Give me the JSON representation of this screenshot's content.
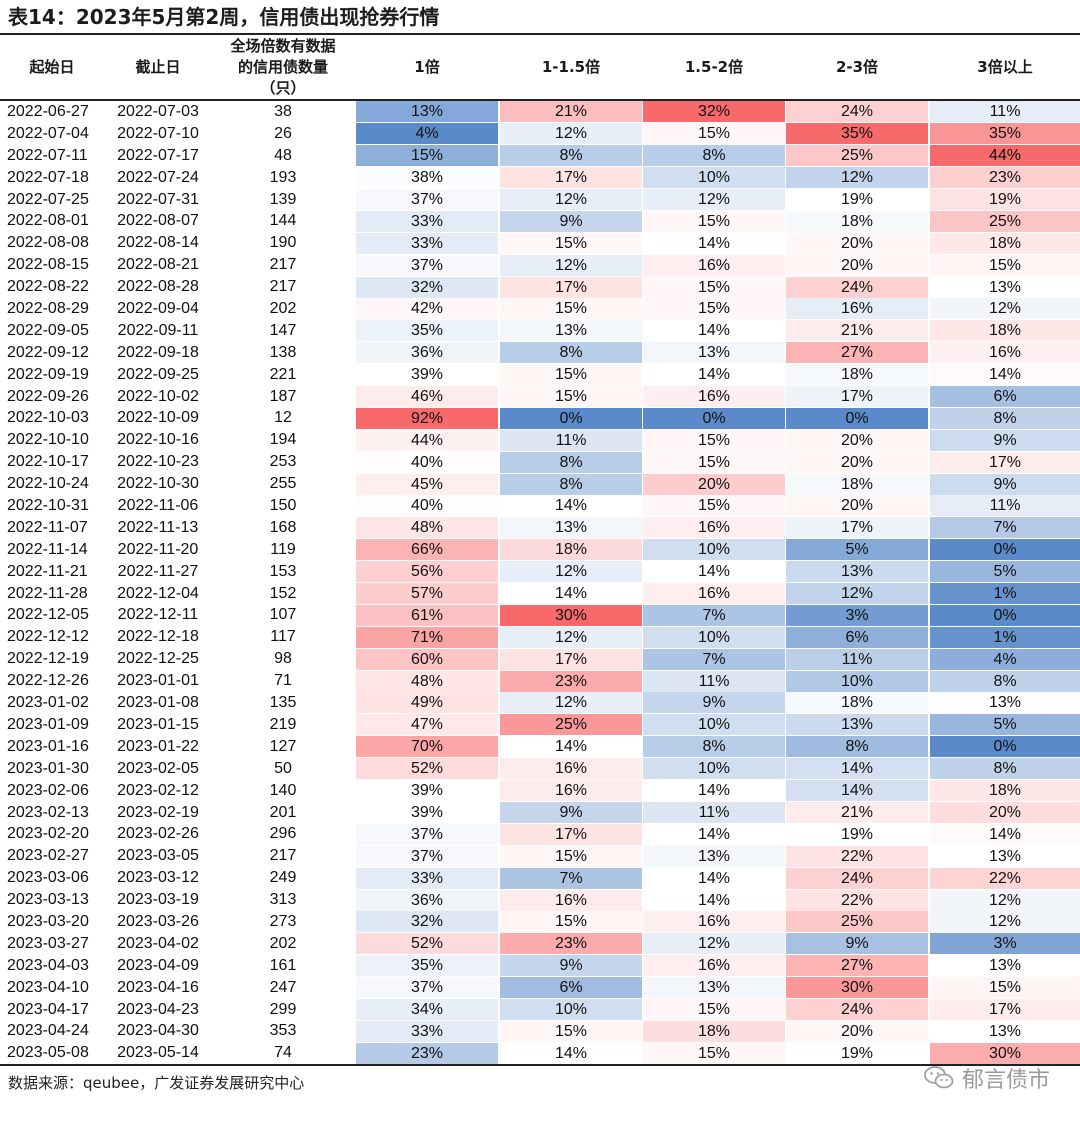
{
  "title": "表14：2023年5月第2周，信用债出现抢券行情",
  "headers": {
    "start": "起始日",
    "end": "截止日",
    "count_line1": "全场倍数有数据",
    "count_line2": "的信用债数量",
    "count_line3": "（只）",
    "b1": "1倍",
    "b2": "1-1.5倍",
    "b3": "1.5-2倍",
    "b4": "2-3倍",
    "b5": "3倍以上"
  },
  "rows": [
    [
      "2022-06-27",
      "2022-07-03",
      "38",
      "13%",
      "21%",
      "32%",
      "24%",
      "11%"
    ],
    [
      "2022-07-04",
      "2022-07-10",
      "26",
      "4%",
      "12%",
      "15%",
      "35%",
      "35%"
    ],
    [
      "2022-07-11",
      "2022-07-17",
      "48",
      "15%",
      "8%",
      "8%",
      "25%",
      "44%"
    ],
    [
      "2022-07-18",
      "2022-07-24",
      "193",
      "38%",
      "17%",
      "10%",
      "12%",
      "23%"
    ],
    [
      "2022-07-25",
      "2022-07-31",
      "139",
      "37%",
      "12%",
      "12%",
      "19%",
      "19%"
    ],
    [
      "2022-08-01",
      "2022-08-07",
      "144",
      "33%",
      "9%",
      "15%",
      "18%",
      "25%"
    ],
    [
      "2022-08-08",
      "2022-08-14",
      "190",
      "33%",
      "15%",
      "14%",
      "20%",
      "18%"
    ],
    [
      "2022-08-15",
      "2022-08-21",
      "217",
      "37%",
      "12%",
      "16%",
      "20%",
      "15%"
    ],
    [
      "2022-08-22",
      "2022-08-28",
      "217",
      "32%",
      "17%",
      "15%",
      "24%",
      "13%"
    ],
    [
      "2022-08-29",
      "2022-09-04",
      "202",
      "42%",
      "15%",
      "15%",
      "16%",
      "12%"
    ],
    [
      "2022-09-05",
      "2022-09-11",
      "147",
      "35%",
      "13%",
      "14%",
      "21%",
      "18%"
    ],
    [
      "2022-09-12",
      "2022-09-18",
      "138",
      "36%",
      "8%",
      "13%",
      "27%",
      "16%"
    ],
    [
      "2022-09-19",
      "2022-09-25",
      "221",
      "39%",
      "15%",
      "14%",
      "18%",
      "14%"
    ],
    [
      "2022-09-26",
      "2022-10-02",
      "187",
      "46%",
      "15%",
      "16%",
      "17%",
      "6%"
    ],
    [
      "2022-10-03",
      "2022-10-09",
      "12",
      "92%",
      "0%",
      "0%",
      "0%",
      "8%"
    ],
    [
      "2022-10-10",
      "2022-10-16",
      "194",
      "44%",
      "11%",
      "15%",
      "20%",
      "9%"
    ],
    [
      "2022-10-17",
      "2022-10-23",
      "253",
      "40%",
      "8%",
      "15%",
      "20%",
      "17%"
    ],
    [
      "2022-10-24",
      "2022-10-30",
      "255",
      "45%",
      "8%",
      "20%",
      "18%",
      "9%"
    ],
    [
      "2022-10-31",
      "2022-11-06",
      "150",
      "40%",
      "14%",
      "15%",
      "20%",
      "11%"
    ],
    [
      "2022-11-07",
      "2022-11-13",
      "168",
      "48%",
      "13%",
      "16%",
      "17%",
      "7%"
    ],
    [
      "2022-11-14",
      "2022-11-20",
      "119",
      "66%",
      "18%",
      "10%",
      "5%",
      "0%"
    ],
    [
      "2022-11-21",
      "2022-11-27",
      "153",
      "56%",
      "12%",
      "14%",
      "13%",
      "5%"
    ],
    [
      "2022-11-28",
      "2022-12-04",
      "152",
      "57%",
      "14%",
      "16%",
      "12%",
      "1%"
    ],
    [
      "2022-12-05",
      "2022-12-11",
      "107",
      "61%",
      "30%",
      "7%",
      "3%",
      "0%"
    ],
    [
      "2022-12-12",
      "2022-12-18",
      "117",
      "71%",
      "12%",
      "10%",
      "6%",
      "1%"
    ],
    [
      "2022-12-19",
      "2022-12-25",
      "98",
      "60%",
      "17%",
      "7%",
      "11%",
      "4%"
    ],
    [
      "2022-12-26",
      "2023-01-01",
      "71",
      "48%",
      "23%",
      "11%",
      "10%",
      "8%"
    ],
    [
      "2023-01-02",
      "2023-01-08",
      "135",
      "49%",
      "12%",
      "9%",
      "18%",
      "13%"
    ],
    [
      "2023-01-09",
      "2023-01-15",
      "219",
      "47%",
      "25%",
      "10%",
      "13%",
      "5%"
    ],
    [
      "2023-01-16",
      "2023-01-22",
      "127",
      "70%",
      "14%",
      "8%",
      "8%",
      "0%"
    ],
    [
      "2023-01-30",
      "2023-02-05",
      "50",
      "52%",
      "16%",
      "10%",
      "14%",
      "8%"
    ],
    [
      "2023-02-06",
      "2023-02-12",
      "140",
      "39%",
      "16%",
      "14%",
      "14%",
      "18%"
    ],
    [
      "2023-02-13",
      "2023-02-19",
      "201",
      "39%",
      "9%",
      "11%",
      "21%",
      "20%"
    ],
    [
      "2023-02-20",
      "2023-02-26",
      "296",
      "37%",
      "17%",
      "14%",
      "19%",
      "14%"
    ],
    [
      "2023-02-27",
      "2023-03-05",
      "217",
      "37%",
      "15%",
      "13%",
      "22%",
      "13%"
    ],
    [
      "2023-03-06",
      "2023-03-12",
      "249",
      "33%",
      "7%",
      "14%",
      "24%",
      "22%"
    ],
    [
      "2023-03-13",
      "2023-03-19",
      "313",
      "36%",
      "16%",
      "14%",
      "22%",
      "12%"
    ],
    [
      "2023-03-20",
      "2023-03-26",
      "273",
      "32%",
      "15%",
      "16%",
      "25%",
      "12%"
    ],
    [
      "2023-03-27",
      "2023-04-02",
      "202",
      "52%",
      "23%",
      "12%",
      "9%",
      "3%"
    ],
    [
      "2023-04-03",
      "2023-04-09",
      "161",
      "35%",
      "9%",
      "16%",
      "27%",
      "13%"
    ],
    [
      "2023-04-10",
      "2023-04-16",
      "247",
      "37%",
      "6%",
      "13%",
      "30%",
      "15%"
    ],
    [
      "2023-04-17",
      "2023-04-23",
      "299",
      "34%",
      "10%",
      "15%",
      "24%",
      "17%"
    ],
    [
      "2023-04-24",
      "2023-04-30",
      "353",
      "33%",
      "15%",
      "18%",
      "20%",
      "13%"
    ],
    [
      "2023-05-08",
      "2023-05-14",
      "74",
      "23%",
      "14%",
      "15%",
      "19%",
      "30%"
    ]
  ],
  "heatmap_colors": {
    "low": "#5a8ac9",
    "mid": "#ffffff",
    "high": "#f8696b"
  },
  "source": "数据来源：qeubee，广发证券发展研究中心",
  "watermark": {
    "text": "郁言债市",
    "icon": "wechat-icon"
  }
}
